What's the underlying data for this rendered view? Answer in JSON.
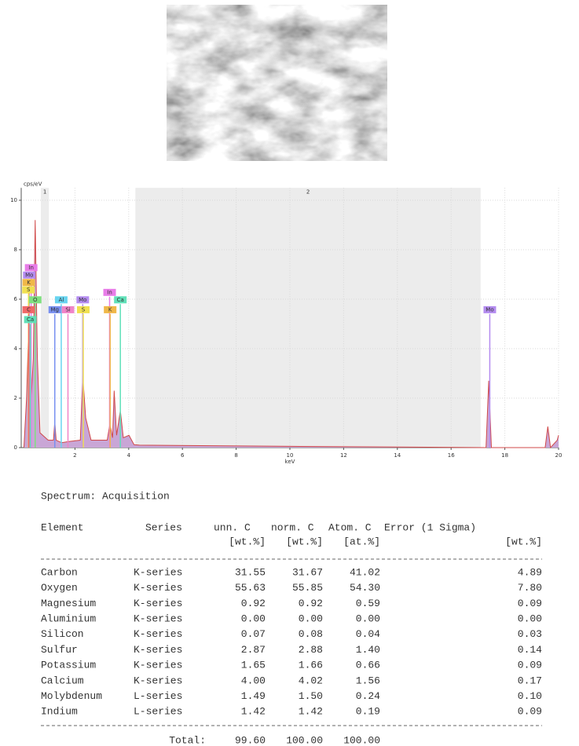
{
  "chart_data": {
    "type": "area",
    "ylabel": "cps/eV",
    "xlabel": "keV",
    "xlim": [
      0,
      20
    ],
    "xticks": [
      2,
      4,
      6,
      8,
      10,
      12,
      14,
      16,
      18,
      20
    ],
    "ylim": [
      0,
      10.5
    ],
    "yticks": [
      0,
      2,
      4,
      6,
      8,
      10
    ],
    "grid": true,
    "color": "#c9a6d6",
    "line_color": "#d04848",
    "x": [
      0.1,
      0.2,
      0.28,
      0.35,
      0.45,
      0.52,
      0.6,
      0.7,
      1.0,
      1.2,
      1.25,
      1.3,
      1.5,
      1.8,
      2.2,
      2.29,
      2.4,
      2.6,
      3.2,
      3.3,
      3.4,
      3.46,
      3.55,
      3.69,
      3.8,
      4.01,
      4.2,
      4.4,
      10,
      17.3,
      17.4,
      17.5,
      19.5,
      19.6,
      19.7,
      19.95,
      20
    ],
    "values": [
      0,
      2,
      4.9,
      1.5,
      3.6,
      9.2,
      3.7,
      0.6,
      0.3,
      0.3,
      1.05,
      0.3,
      0.2,
      0.25,
      0.3,
      2.9,
      1.2,
      0.3,
      0.3,
      0.95,
      0.4,
      2.3,
      0.5,
      1.5,
      0.4,
      0.5,
      0.12,
      0.1,
      0.05,
      0,
      2.7,
      0,
      0,
      0.85,
      0,
      0.3,
      0.5
    ],
    "regions": [
      {
        "label": "1",
        "x": [
          0.73,
          1.03
        ]
      },
      {
        "label": "2",
        "x": [
          4.25,
          17.1
        ]
      }
    ],
    "markers": [
      {
        "label": "In",
        "x": 0.37,
        "y": 7.1,
        "color": "#e87ce8"
      },
      {
        "label": "Mo",
        "x": 0.3,
        "y": 6.8,
        "color": "#b48cf0"
      },
      {
        "label": "K",
        "x": 0.28,
        "y": 6.5,
        "color": "#f0b848"
      },
      {
        "label": "S",
        "x": 0.27,
        "y": 6.2,
        "color": "#f0e050"
      },
      {
        "label": "O",
        "x": 0.52,
        "y": 5.8,
        "color": "#80e080"
      },
      {
        "label": "C",
        "x": 0.28,
        "y": 5.4,
        "color": "#f06868"
      },
      {
        "label": "Ca",
        "x": 0.34,
        "y": 5.0,
        "color": "#60e0b8"
      },
      {
        "label": "Al",
        "x": 1.49,
        "y": 5.8,
        "color": "#68d4f0"
      },
      {
        "label": "Mg",
        "x": 1.25,
        "y": 5.4,
        "color": "#7890f0"
      },
      {
        "label": "Si",
        "x": 1.74,
        "y": 5.4,
        "color": "#f084c8"
      },
      {
        "label": "Mo",
        "x": 2.29,
        "y": 5.8,
        "color": "#b48cf0"
      },
      {
        "label": "S",
        "x": 2.31,
        "y": 5.4,
        "color": "#f0e050"
      },
      {
        "label": "In",
        "x": 3.29,
        "y": 6.1,
        "color": "#e87ce8"
      },
      {
        "label": "Ca",
        "x": 3.69,
        "y": 5.8,
        "color": "#60e0b8"
      },
      {
        "label": "K",
        "x": 3.31,
        "y": 5.4,
        "color": "#f0b848"
      },
      {
        "label": "Mo",
        "x": 17.44,
        "y": 5.4,
        "color": "#b48cf0"
      }
    ]
  },
  "table": {
    "title": "Spectrum: Acquisition",
    "header": [
      "Element",
      "Series",
      "unn. C",
      "norm. C",
      "Atom. C",
      "Error (1 Sigma)"
    ],
    "units": [
      "[wt.%]",
      "[wt.%]",
      "[at.%]",
      "[wt.%]"
    ],
    "rows": [
      [
        "Carbon",
        "K-series",
        "31.55",
        "31.67",
        "41.02",
        "4.89"
      ],
      [
        "Oxygen",
        "K-series",
        "55.63",
        "55.85",
        "54.30",
        "7.80"
      ],
      [
        "Magnesium",
        "K-series",
        "0.92",
        "0.92",
        "0.59",
        "0.09"
      ],
      [
        "Aluminium",
        "K-series",
        "0.00",
        "0.00",
        "0.00",
        "0.00"
      ],
      [
        "Silicon",
        "K-series",
        "0.07",
        "0.08",
        "0.04",
        "0.03"
      ],
      [
        "Sulfur",
        "K-series",
        "2.87",
        "2.88",
        "1.40",
        "0.14"
      ],
      [
        "Potassium",
        "K-series",
        "1.65",
        "1.66",
        "0.66",
        "0.09"
      ],
      [
        "Calcium",
        "K-series",
        "4.00",
        "4.02",
        "1.56",
        "0.17"
      ],
      [
        "Molybdenum",
        "L-series",
        "1.49",
        "1.50",
        "0.24",
        "0.10"
      ],
      [
        "Indium",
        "L-series",
        "1.42",
        "1.42",
        "0.19",
        "0.09"
      ]
    ],
    "total": {
      "label": "Total:",
      "values": [
        "99.60",
        "100.00",
        "100.00"
      ]
    }
  }
}
